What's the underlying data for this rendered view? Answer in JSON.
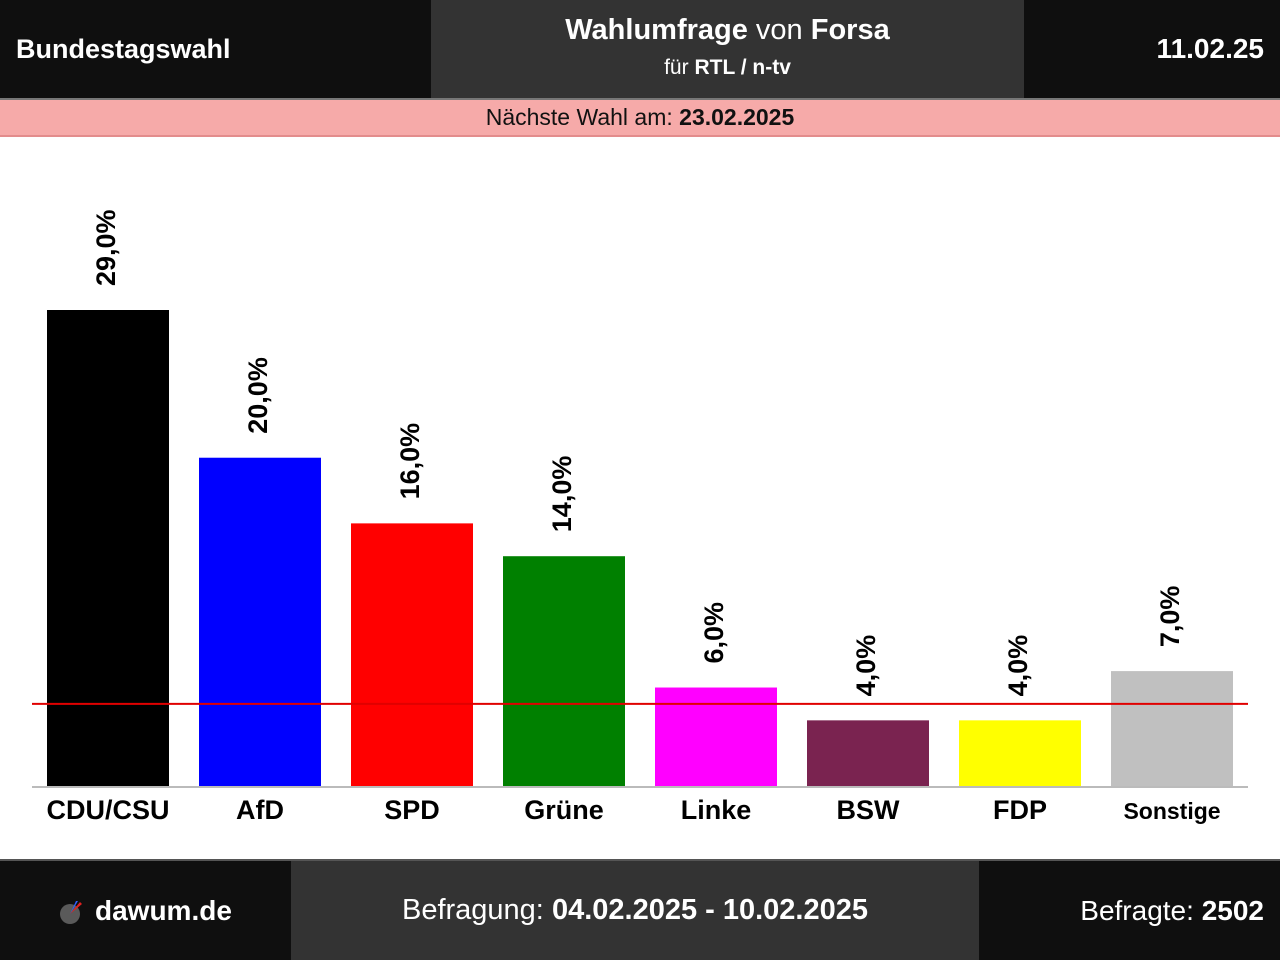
{
  "header": {
    "left_title": "Bundestagswahl",
    "center_title_bold": "Wahlumfrage",
    "center_title_connector": "von",
    "center_title_institute": "Forsa",
    "center_subtitle_prefix": "für",
    "center_subtitle_client": "RTL / n-tv",
    "date": "11.02.25"
  },
  "next_election": {
    "label": "Nächste Wahl am:",
    "date": "23.02.2025"
  },
  "chart_data": {
    "type": "bar",
    "categories": [
      "CDU/CSU",
      "AfD",
      "SPD",
      "Grüne",
      "Linke",
      "BSW",
      "FDP",
      "Sonstige"
    ],
    "values": [
      29.0,
      20.0,
      16.0,
      14.0,
      6.0,
      4.0,
      4.0,
      7.0
    ],
    "value_labels": [
      "29,0%",
      "20,0%",
      "16,0%",
      "14,0%",
      "6,0%",
      "4,0%",
      "4,0%",
      "7,0%"
    ],
    "colors": [
      "#000000",
      "#0000ff",
      "#ff0000",
      "#008000",
      "#ff00ff",
      "#7a2350",
      "#ffff00",
      "#c0c0c0"
    ],
    "threshold": 5.0,
    "threshold_color": "#e00000",
    "ylim": [
      0,
      29.0
    ],
    "grid": false
  },
  "footer": {
    "site": "dawum.de",
    "survey_label": "Befragung:",
    "survey_period": "04.02.2025 - 10.02.2025",
    "respondents_label": "Befragte:",
    "respondents": "2502"
  }
}
